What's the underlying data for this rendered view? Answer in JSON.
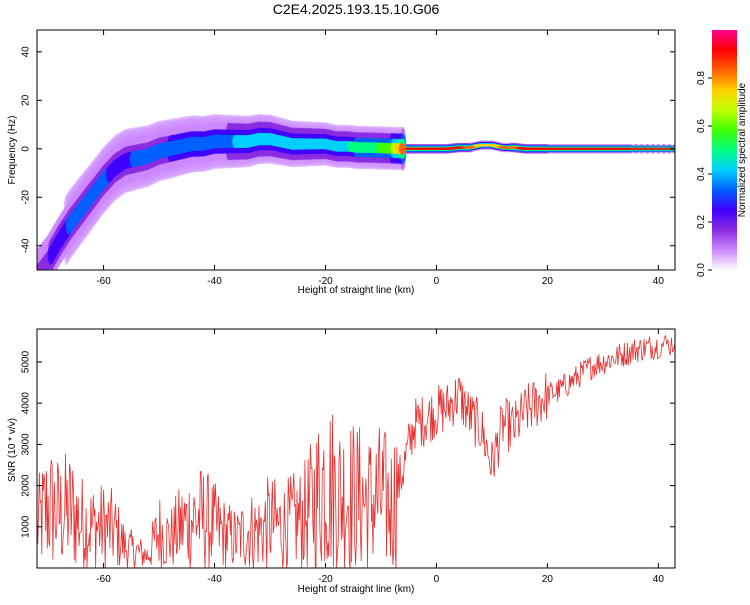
{
  "title": "C2E4.2025.193.15.10.G06",
  "chart_data": [
    {
      "type": "heatmap",
      "xlabel": "Height of straight line (km)",
      "ylabel": "Frequency (Hz)",
      "xlim": [
        -72,
        43
      ],
      "ylim": [
        -50,
        49
      ],
      "xticks": [
        -60,
        -40,
        -20,
        0,
        20,
        40
      ],
      "yticks": [
        -40,
        -20,
        0,
        20,
        40
      ],
      "colorbar": {
        "label": "Normalized spectral amplitude",
        "range": [
          0.0,
          1.0
        ],
        "ticks": [
          "0.0",
          "0.2",
          "0.4",
          "0.6",
          "0.8"
        ],
        "colors": [
          "#ffffff",
          "#cc88ff",
          "#8a2be2",
          "#4000ff",
          "#0060ff",
          "#00d0ff",
          "#00ff80",
          "#40ff00",
          "#c0ff00",
          "#ffd000",
          "#ff6000",
          "#ff0000",
          "#ff0090"
        ]
      },
      "ridge": {
        "height_km": [
          -72,
          -70,
          -68,
          -66,
          -64,
          -62,
          -60,
          -58,
          -56,
          -54,
          -52,
          -50,
          -48,
          -46,
          -44,
          -42,
          -40,
          -38,
          -36,
          -34,
          -32,
          -30,
          -28,
          -26,
          -24,
          -22,
          -20,
          -18,
          -16,
          -14,
          -12,
          -10,
          -8,
          -6,
          -4,
          -2,
          0,
          2,
          4,
          6,
          8,
          10,
          12,
          14,
          16,
          18,
          20,
          25,
          30,
          35,
          43
        ],
        "frequency_hz": [
          -52,
          -46,
          -38,
          -31,
          -25,
          -19,
          -13,
          -8,
          -5,
          -4,
          -3,
          -1,
          0,
          1,
          2,
          2,
          3,
          3,
          3,
          3,
          4,
          4,
          3,
          2,
          2,
          2,
          2,
          1,
          1,
          0.5,
          0.5,
          0.3,
          0.2,
          0,
          0,
          0,
          0,
          0,
          0.5,
          0.5,
          1.5,
          1.5,
          0.5,
          0.5,
          0,
          0,
          0,
          0,
          0,
          0,
          0
        ],
        "amplitude": [
          0.15,
          0.2,
          0.25,
          0.3,
          0.3,
          0.3,
          0.3,
          0.28,
          0.28,
          0.3,
          0.3,
          0.32,
          0.35,
          0.35,
          0.35,
          0.35,
          0.35,
          0.35,
          0.38,
          0.4,
          0.42,
          0.42,
          0.4,
          0.4,
          0.42,
          0.42,
          0.45,
          0.45,
          0.45,
          0.5,
          0.5,
          0.55,
          0.6,
          0.85,
          0.9,
          0.9,
          0.9,
          0.9,
          0.9,
          0.85,
          0.75,
          0.75,
          0.8,
          0.85,
          0.9,
          0.9,
          0.9,
          0.9,
          0.9,
          0.9,
          0.9
        ]
      }
    },
    {
      "type": "line",
      "xlabel": "Height of straight line (km)",
      "ylabel": "SNR (10 * v/v)",
      "xlim": [
        -72,
        43
      ],
      "ylim": [
        0,
        5800
      ],
      "xticks": [
        -60,
        -40,
        -20,
        0,
        20,
        40
      ],
      "yticks": [
        1000,
        2000,
        3000,
        4000,
        5000
      ],
      "color": "#e83030",
      "x": [
        -72,
        -70,
        -68,
        -66,
        -64,
        -62,
        -60,
        -58,
        -56,
        -54,
        -52,
        -50,
        -48,
        -46,
        -44,
        -42,
        -40,
        -38,
        -36,
        -34,
        -32,
        -30,
        -28,
        -26,
        -24,
        -22,
        -20,
        -18,
        -16,
        -14,
        -12,
        -10,
        -8,
        -6,
        -4,
        -2,
        0,
        2,
        4,
        6,
        8,
        10,
        12,
        14,
        16,
        18,
        20,
        22,
        24,
        26,
        28,
        30,
        32,
        34,
        36,
        38,
        40,
        43
      ],
      "y": [
        1000,
        1500,
        1300,
        1400,
        1100,
        1000,
        1000,
        900,
        500,
        400,
        300,
        900,
        700,
        1000,
        1200,
        1200,
        1000,
        800,
        700,
        900,
        900,
        1100,
        1000,
        1100,
        1200,
        1600,
        2200,
        1800,
        1800,
        1700,
        1600,
        1700,
        1500,
        2400,
        3500,
        3600,
        3800,
        3900,
        4200,
        3700,
        3400,
        2500,
        3500,
        3400,
        3800,
        4000,
        4200,
        4300,
        4500,
        4700,
        4900,
        5000,
        5100,
        5200,
        5300,
        5350,
        5400,
        5450
      ]
    }
  ]
}
